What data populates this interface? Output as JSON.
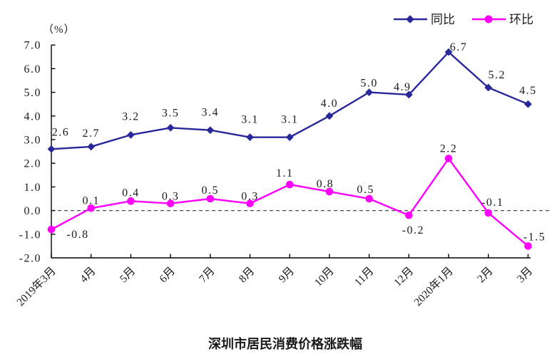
{
  "chart_data": {
    "type": "line",
    "title": "深圳市居民消费价格涨跌幅",
    "unit_label": "（%）",
    "categories": [
      "2019年3月",
      "4月",
      "5月",
      "6月",
      "7月",
      "8月",
      "9月",
      "10月",
      "11月",
      "12月",
      "2020年1月",
      "2月",
      "3月"
    ],
    "series": [
      {
        "name": "同比",
        "color": "#28289B",
        "marker": "diamond",
        "values": [
          2.6,
          2.7,
          3.2,
          3.5,
          3.4,
          3.1,
          3.1,
          4.0,
          5.0,
          4.9,
          6.7,
          5.2,
          4.5
        ]
      },
      {
        "name": "环比",
        "color": "#FF00FF",
        "marker": "circle",
        "values": [
          -0.8,
          0.1,
          0.4,
          0.3,
          0.5,
          0.3,
          1.1,
          0.8,
          0.5,
          -0.2,
          2.2,
          -0.1,
          -1.5
        ]
      }
    ],
    "ylim": [
      -2.0,
      7.0
    ],
    "ytick_step": 1.0,
    "ytick_decimals": 1,
    "zero_line_style": "dashed",
    "legend_position": "top-right",
    "grid": "off",
    "axis_color": "#000000",
    "zero_line_color": "#4d4d4d",
    "label_color": "#1a1a1a"
  }
}
